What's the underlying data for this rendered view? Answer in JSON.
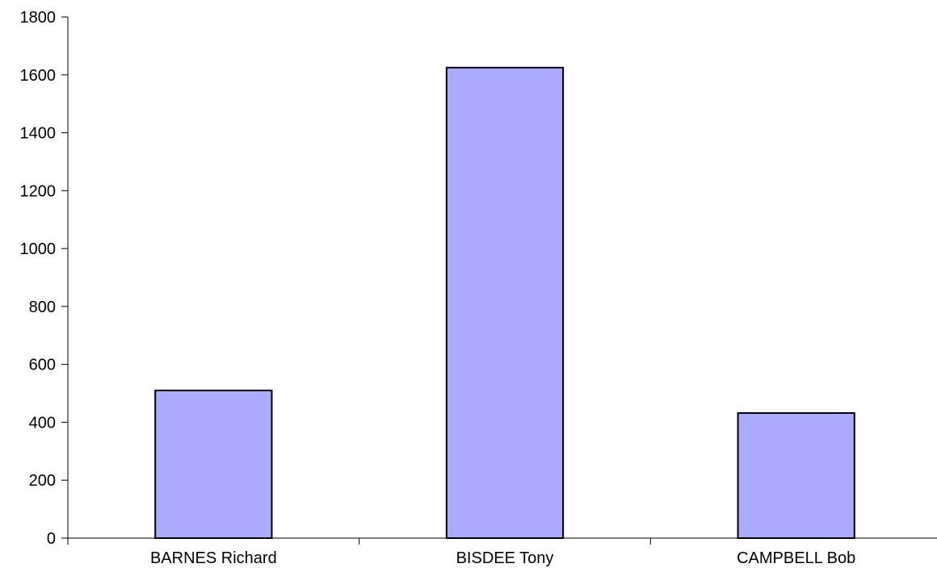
{
  "chart_data": {
    "type": "bar",
    "title": "",
    "xlabel": "",
    "ylabel": "",
    "categories": [
      "BARNES Richard",
      "BISDEE Tony",
      "CAMPBELL Bob"
    ],
    "values": [
      510,
      1625,
      432
    ],
    "ylim": [
      0,
      1800
    ],
    "yticks": [
      0,
      200,
      400,
      600,
      800,
      1000,
      1200,
      1400,
      1600,
      1800
    ],
    "ytick_labels": [
      "0",
      "200",
      "400",
      "600",
      "800",
      "1000",
      "1200",
      "1400",
      "1600",
      "1800"
    ],
    "grid": false,
    "legend": "none",
    "bar_color": "#aaaaff",
    "bar_edge_color": "#000000"
  }
}
